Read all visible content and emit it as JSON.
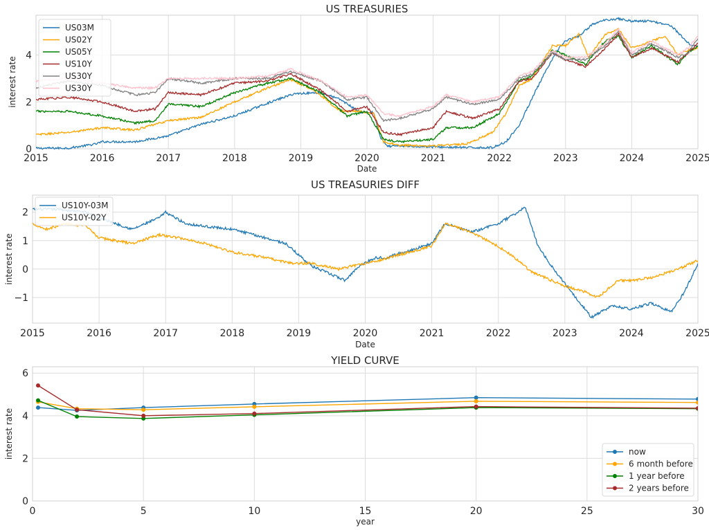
{
  "chart_data": [
    {
      "type": "line",
      "title": "US TREASURIES",
      "xlabel": "Date",
      "ylabel": "interest rate",
      "xlim": [
        2015.0,
        2025.0
      ],
      "ylim": [
        0,
        5.7
      ],
      "xticks": [
        "2015",
        "2016",
        "2017",
        "2018",
        "2019",
        "2020",
        "2021",
        "2022",
        "2023",
        "2024",
        "2025"
      ],
      "xtick_values": [
        2015,
        2016,
        2017,
        2018,
        2019,
        2020,
        2021,
        2022,
        2023,
        2024,
        2025
      ],
      "yticks": [
        "0",
        "2",
        "4"
      ],
      "ytick_values": [
        0,
        2,
        4
      ],
      "grid": true,
      "legend_position": "top-left",
      "series": [
        {
          "name": "US03M",
          "color": "#1f77b4",
          "x": [
            2015.0,
            2015.5,
            2015.9,
            2016.0,
            2016.5,
            2017.0,
            2017.5,
            2018.0,
            2018.5,
            2018.9,
            2019.3,
            2019.6,
            2019.9,
            2020.1,
            2020.2,
            2020.3,
            2020.5,
            2021.0,
            2021.5,
            2021.9,
            2022.1,
            2022.3,
            2022.5,
            2022.7,
            2022.9,
            2023.0,
            2023.2,
            2023.4,
            2023.6,
            2023.8,
            2024.0,
            2024.3,
            2024.6,
            2024.75,
            2024.9,
            2025.0
          ],
          "y": [
            0.02,
            0.03,
            0.2,
            0.3,
            0.3,
            0.55,
            1.05,
            1.4,
            1.95,
            2.35,
            2.4,
            2.1,
            1.55,
            1.55,
            0.5,
            0.1,
            0.12,
            0.08,
            0.05,
            0.05,
            0.3,
            1.0,
            2.2,
            3.3,
            4.3,
            4.6,
            4.8,
            5.3,
            5.5,
            5.55,
            5.45,
            5.45,
            5.25,
            4.8,
            4.4,
            4.4
          ]
        },
        {
          "name": "US02Y",
          "color": "#ffa500",
          "x": [
            2015.0,
            2015.5,
            2016.0,
            2016.5,
            2017.0,
            2017.5,
            2018.0,
            2018.5,
            2018.85,
            2019.2,
            2019.6,
            2019.9,
            2020.1,
            2020.25,
            2020.5,
            2021.0,
            2021.5,
            2021.9,
            2022.1,
            2022.3,
            2022.5,
            2022.8,
            2023.0,
            2023.2,
            2023.35,
            2023.6,
            2023.8,
            2024.0,
            2024.3,
            2024.5,
            2024.7,
            2024.85,
            2025.0
          ],
          "y": [
            0.6,
            0.7,
            0.9,
            0.8,
            1.2,
            1.35,
            2.0,
            2.6,
            2.95,
            2.5,
            1.6,
            1.6,
            1.5,
            0.3,
            0.15,
            0.13,
            0.2,
            0.7,
            1.5,
            2.7,
            3.0,
            4.4,
            4.4,
            4.9,
            3.9,
            4.9,
            5.1,
            4.3,
            4.6,
            4.8,
            4.0,
            4.2,
            4.3
          ]
        },
        {
          "name": "US05Y",
          "color": "#008000",
          "x": [
            2015.0,
            2015.5,
            2016.0,
            2016.5,
            2016.8,
            2017.0,
            2017.5,
            2018.0,
            2018.5,
            2018.85,
            2019.3,
            2019.7,
            2020.0,
            2020.25,
            2020.5,
            2021.0,
            2021.2,
            2021.6,
            2022.0,
            2022.3,
            2022.5,
            2022.8,
            2023.0,
            2023.3,
            2023.6,
            2023.8,
            2024.0,
            2024.3,
            2024.7,
            2024.85,
            2025.0
          ],
          "y": [
            1.6,
            1.6,
            1.4,
            1.1,
            1.2,
            1.9,
            1.8,
            2.4,
            2.8,
            3.0,
            2.4,
            1.4,
            1.6,
            0.4,
            0.3,
            0.4,
            0.9,
            0.9,
            1.5,
            2.9,
            3.1,
            4.2,
            4.0,
            3.6,
            4.6,
            4.8,
            3.9,
            4.4,
            3.6,
            4.1,
            4.4
          ]
        },
        {
          "name": "US10Y",
          "color": "#a52a2a",
          "x": [
            2015.0,
            2015.5,
            2016.0,
            2016.5,
            2016.8,
            2017.0,
            2017.5,
            2018.0,
            2018.5,
            2018.85,
            2019.3,
            2019.7,
            2020.0,
            2020.25,
            2020.5,
            2021.0,
            2021.2,
            2021.6,
            2022.0,
            2022.3,
            2022.5,
            2022.8,
            2023.0,
            2023.3,
            2023.6,
            2023.8,
            2024.0,
            2024.3,
            2024.7,
            2024.85,
            2025.0
          ],
          "y": [
            2.1,
            2.2,
            2.0,
            1.6,
            1.7,
            2.4,
            2.3,
            2.8,
            2.9,
            3.2,
            2.5,
            1.6,
            1.8,
            0.7,
            0.6,
            0.9,
            1.6,
            1.3,
            1.7,
            2.9,
            3.0,
            4.1,
            3.8,
            3.5,
            4.3,
            4.9,
            3.9,
            4.3,
            3.7,
            4.1,
            4.5
          ]
        },
        {
          "name": "US30Y",
          "color": "#808080",
          "x": [
            2015.0,
            2015.5,
            2016.0,
            2016.5,
            2016.8,
            2017.0,
            2017.5,
            2018.0,
            2018.5,
            2018.85,
            2019.3,
            2019.7,
            2020.0,
            2020.25,
            2020.5,
            2021.0,
            2021.2,
            2021.6,
            2022.0,
            2022.3,
            2022.5,
            2022.8,
            2023.0,
            2023.3,
            2023.6,
            2023.8,
            2024.0,
            2024.3,
            2024.7,
            2024.85,
            2025.0
          ],
          "y": [
            2.6,
            2.9,
            2.7,
            2.3,
            2.4,
            3.0,
            2.8,
            3.0,
            3.0,
            3.3,
            2.9,
            2.1,
            2.2,
            1.2,
            1.3,
            1.7,
            2.2,
            1.9,
            2.1,
            3.0,
            3.2,
            4.1,
            3.8,
            3.8,
            4.4,
            5.0,
            4.0,
            4.5,
            3.9,
            4.1,
            4.7
          ]
        },
        {
          "name": "US30Y",
          "color": "#ffc0cb",
          "x": [
            2015.0,
            2015.5,
            2016.0,
            2016.5,
            2016.8,
            2017.0,
            2017.5,
            2018.0,
            2018.5,
            2018.85,
            2019.3,
            2019.7,
            2020.0,
            2020.25,
            2020.5,
            2021.0,
            2021.2,
            2021.6,
            2022.0,
            2022.3,
            2022.5,
            2022.8,
            2023.0,
            2023.3,
            2023.6,
            2023.8,
            2024.0,
            2024.3,
            2024.7,
            2024.85,
            2025.0
          ],
          "y": [
            2.9,
            3.0,
            2.8,
            2.6,
            2.6,
            3.0,
            3.0,
            3.0,
            3.1,
            3.4,
            2.9,
            2.2,
            2.3,
            1.5,
            1.4,
            1.8,
            2.3,
            2.0,
            2.2,
            3.1,
            3.3,
            4.2,
            3.9,
            3.9,
            4.5,
            5.1,
            4.1,
            4.6,
            4.0,
            4.3,
            4.8
          ]
        }
      ]
    },
    {
      "type": "line",
      "title": "US TREASURIES DIFF",
      "xlabel": "Date",
      "ylabel": "interest rate",
      "xlim": [
        2015.0,
        2025.0
      ],
      "ylim": [
        -1.9,
        2.6
      ],
      "xticks": [
        "2015",
        "2016",
        "2017",
        "2018",
        "2019",
        "2020",
        "2021",
        "2022",
        "2023",
        "2024",
        "2025"
      ],
      "xtick_values": [
        2015,
        2016,
        2017,
        2018,
        2019,
        2020,
        2021,
        2022,
        2023,
        2024,
        2025
      ],
      "yticks": [
        "−1",
        "0",
        "1",
        "2"
      ],
      "ytick_values": [
        -1,
        0,
        1,
        2
      ],
      "grid": true,
      "legend_position": "top-left",
      "series": [
        {
          "name": "US10Y-03M",
          "color": "#1f77b4",
          "x": [
            2015.0,
            2015.4,
            2015.8,
            2016.0,
            2016.5,
            2016.9,
            2017.0,
            2017.3,
            2017.6,
            2018.0,
            2018.5,
            2018.8,
            2019.2,
            2019.5,
            2019.7,
            2019.9,
            2020.15,
            2020.3,
            2020.6,
            2021.0,
            2021.2,
            2021.6,
            2022.0,
            2022.3,
            2022.4,
            2022.6,
            2022.8,
            2023.0,
            2023.2,
            2023.4,
            2023.7,
            2024.0,
            2024.3,
            2024.6,
            2024.8,
            2025.0
          ],
          "y": [
            2.1,
            2.1,
            2.0,
            1.8,
            1.4,
            1.8,
            2.0,
            1.6,
            1.5,
            1.4,
            1.1,
            0.9,
            0.1,
            -0.2,
            -0.4,
            0.1,
            0.4,
            0.4,
            0.6,
            0.9,
            1.6,
            1.3,
            1.6,
            2.0,
            2.2,
            0.8,
            0.1,
            -0.5,
            -1.1,
            -1.7,
            -1.3,
            -1.4,
            -1.2,
            -1.5,
            -0.8,
            0.2
          ]
        },
        {
          "name": "US10Y-02Y",
          "color": "#ffa500",
          "x": [
            2015.0,
            2015.2,
            2015.5,
            2015.8,
            2016.0,
            2016.5,
            2016.9,
            2017.2,
            2017.6,
            2018.0,
            2018.5,
            2018.9,
            2019.2,
            2019.6,
            2020.0,
            2020.2,
            2020.5,
            2021.0,
            2021.2,
            2021.6,
            2022.0,
            2022.3,
            2022.5,
            2022.8,
            2023.0,
            2023.3,
            2023.5,
            2023.8,
            2024.0,
            2024.3,
            2024.7,
            2024.9,
            2025.0
          ],
          "y": [
            1.6,
            1.4,
            1.6,
            1.5,
            1.1,
            0.9,
            1.2,
            1.1,
            0.9,
            0.6,
            0.4,
            0.2,
            0.2,
            0.0,
            0.2,
            0.3,
            0.5,
            0.8,
            1.6,
            1.3,
            0.8,
            0.3,
            -0.1,
            -0.4,
            -0.6,
            -0.8,
            -1.0,
            -0.4,
            -0.4,
            -0.3,
            0.0,
            0.2,
            0.3
          ]
        }
      ]
    },
    {
      "type": "line",
      "title": "YIELD CURVE",
      "xlabel": "year",
      "ylabel": "interest rate",
      "xlim": [
        0,
        30
      ],
      "ylim": [
        0,
        6.3
      ],
      "xticks": [
        "0",
        "5",
        "10",
        "15",
        "20",
        "25",
        "30"
      ],
      "xtick_values": [
        0,
        5,
        10,
        15,
        20,
        25,
        30
      ],
      "yticks": [
        "0",
        "2",
        "4",
        "6"
      ],
      "ytick_values": [
        0,
        2,
        4,
        6
      ],
      "grid": true,
      "legend_position": "bottom-right",
      "markers": true,
      "series": [
        {
          "name": "now",
          "color": "#1f77b4",
          "x": [
            0.25,
            2,
            5,
            10,
            20,
            30
          ],
          "y": [
            4.38,
            4.25,
            4.38,
            4.55,
            4.85,
            4.78
          ]
        },
        {
          "name": "6 month before",
          "color": "#ffa500",
          "x": [
            0.25,
            2,
            5,
            10,
            20,
            30
          ],
          "y": [
            4.65,
            4.33,
            4.28,
            4.42,
            4.68,
            4.62
          ]
        },
        {
          "name": "1 year before",
          "color": "#008000",
          "x": [
            0.25,
            2,
            5,
            10,
            20,
            30
          ],
          "y": [
            4.72,
            3.96,
            3.87,
            4.04,
            4.38,
            4.33
          ]
        },
        {
          "name": "2 years before",
          "color": "#a52a2a",
          "x": [
            0.25,
            2,
            5,
            10,
            20,
            30
          ],
          "y": [
            5.42,
            4.28,
            4.0,
            4.1,
            4.43,
            4.35
          ]
        }
      ]
    }
  ]
}
